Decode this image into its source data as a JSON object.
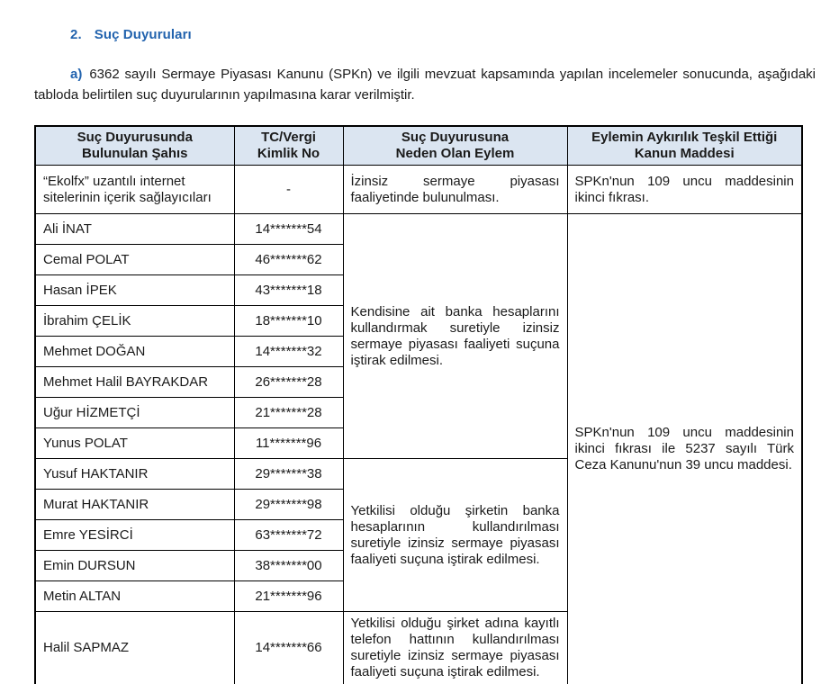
{
  "colors": {
    "heading_blue": "#2263AE",
    "header_bg": "#DBE5F1"
  },
  "document": {
    "heading": {
      "number": "2.",
      "title": "Suç Duyuruları"
    },
    "intro": {
      "label": "a)",
      "text": "6362 sayılı Sermaye Piyasası Kanunu (SPKn) ve ilgili mevzuat kapsamında yapılan incelemeler sonucunda, aşağıdaki tabloda belirtilen suç duyurularının yapılmasına karar verilmiştir."
    }
  },
  "table": {
    "headers": [
      {
        "lines": [
          "Suç Duyurusunda",
          "Bulunulan Şahıs"
        ]
      },
      {
        "lines": [
          "TC/Vergi",
          "Kimlik No"
        ]
      },
      {
        "lines": [
          "Suç Duyurusuna",
          "Neden Olan Eylem"
        ]
      },
      {
        "lines": [
          "Eylemin Aykırılık Teşkil Ettiği",
          "Kanun Maddesi"
        ]
      }
    ],
    "rows": [
      {
        "person": "“Ekolfx” uzantılı internet sitelerinin içerik sağlayıcıları",
        "id": "-"
      },
      {
        "person": "Ali İNAT",
        "id": "14*******54"
      },
      {
        "person": "Cemal POLAT",
        "id": "46*******62"
      },
      {
        "person": "Hasan İPEK",
        "id": "43*******18"
      },
      {
        "person": "İbrahim ÇELİK",
        "id": "18*******10"
      },
      {
        "person": "Mehmet DOĞAN",
        "id": "14*******32"
      },
      {
        "person": "Mehmet Halil BAYRAKDAR",
        "id": "26*******28"
      },
      {
        "person": "Uğur HİZMETÇİ",
        "id": "21*******28"
      },
      {
        "person": "Yunus POLAT",
        "id": "11*******96"
      },
      {
        "person": "Yusuf HAKTANIR",
        "id": "29*******38"
      },
      {
        "person": "Murat HAKTANIR",
        "id": "29*******98"
      },
      {
        "person": "Emre YESİRCİ",
        "id": "63*******72"
      },
      {
        "person": "Emin DURSUN",
        "id": "38*******00"
      },
      {
        "person": "Metin ALTAN",
        "id": "21*******96"
      },
      {
        "person": "Halil SAPMAZ",
        "id": "14*******66"
      }
    ],
    "actions": {
      "unauthorized_activity": "İzinsiz sermaye piyasası faaliyetinde bulunulması.",
      "personal_bank_accounts": "Kendisine ait banka hesaplarını kullandırmak suretiyle izinsiz sermaye piyasası faaliyeti suçuna iştirak edilmesi.",
      "company_bank_accounts": "Yetkilisi olduğu şirketin banka hesaplarının kullandırılması suretiyle izinsiz sermaye piyasası faaliyeti suçuna iştirak edilmesi.",
      "company_phone_line": "Yetkilisi olduğu şirket adına kayıtlı telefon hattının kullandırılması suretiyle izinsiz sermaye piyasası faaliyeti suçuna iştirak edilmesi."
    },
    "laws": {
      "spk_109": "SPKn'nun 109 uncu maddesinin ikinci fıkrası.",
      "spk_109_tck_39": "SPKn'nun 109 uncu maddesinin ikinci fıkrası ile 5237 sayılı Türk Ceza Kanunu'nun 39 uncu maddesi."
    }
  }
}
